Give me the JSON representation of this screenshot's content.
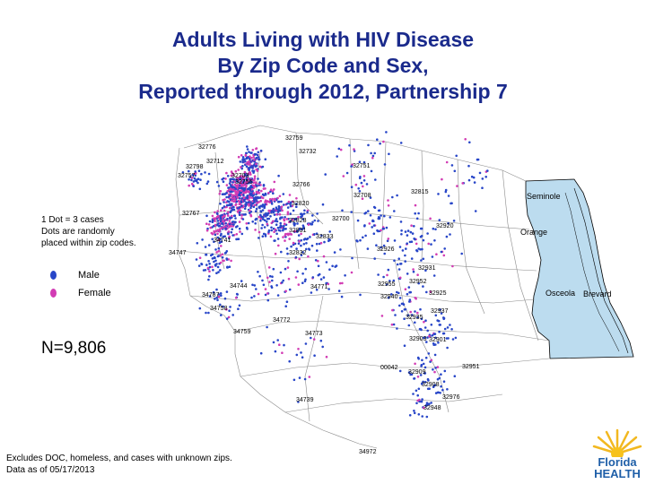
{
  "title": {
    "line1": "Adults Living with HIV Disease",
    "line2": "By Zip Code and Sex,",
    "line3": "Reported through 2012, Partnership 7"
  },
  "legend": {
    "note_line1": "1 Dot = 3 cases",
    "note_line2": "Dots are randomly",
    "note_line3": "placed within zip codes.",
    "male_label": "Male",
    "female_label": "Female",
    "male_color": "#2846c8",
    "female_color": "#d23cb4"
  },
  "count_label": "N=9,806",
  "footer": {
    "line1": "Excludes DOC, homeless, and cases with unknown zips.",
    "line2": "Data as of 05/17/2013"
  },
  "counties": {
    "seminole": "Seminole",
    "orange": "Orange",
    "osceola": "Osceola",
    "brevard": "Brevard",
    "brevard_color": "#bcdcef"
  },
  "zip_labels": [
    "32759",
    "32776",
    "32732",
    "32712",
    "32798",
    "32757",
    "32703",
    "32756",
    "32766",
    "32751",
    "32815",
    "32708",
    "32767",
    "32700",
    "32920",
    "32828",
    "32831",
    "32833",
    "32926",
    "32832",
    "34747",
    "34741",
    "32931",
    "32952",
    "34771",
    "32955",
    "32940",
    "32925",
    "32937",
    "32935",
    "32901",
    "32903",
    "32951",
    "32909",
    "32976",
    "32948",
    "34739",
    "34972",
    "34772",
    "34773",
    "34758",
    "34759",
    "32908",
    "00042",
    "32820",
    "34787",
    "34744"
  ],
  "logo": {
    "line1": "Florida",
    "line2": "HEALTH"
  }
}
